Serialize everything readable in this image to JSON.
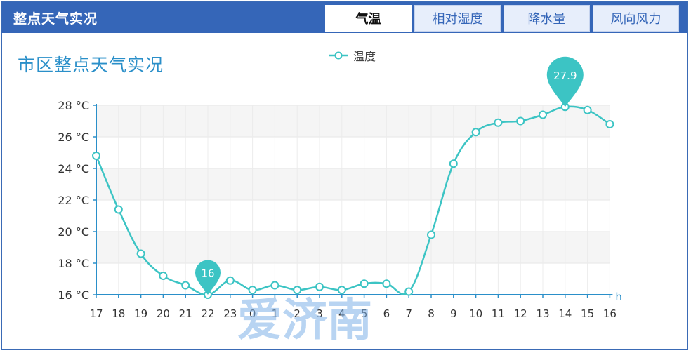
{
  "header": {
    "title": "整点天气实况",
    "tabs": [
      {
        "label": "气温",
        "active": true
      },
      {
        "label": "相对湿度",
        "active": false
      },
      {
        "label": "降水量",
        "active": false
      },
      {
        "label": "风向风力",
        "active": false
      }
    ]
  },
  "watermark": "爱济南",
  "colors": {
    "header": "#3566b8",
    "series": "#3cc4c4",
    "title": "#2a8fc9",
    "axis": "#2a8fc9"
  },
  "chart_data": {
    "type": "line",
    "title": "市区整点天气实况",
    "legend": {
      "entries": [
        "温度"
      ],
      "placement": "top-center"
    },
    "x_unit": "h",
    "y_unit_suffix": " °C",
    "categories": [
      "17",
      "18",
      "19",
      "20",
      "21",
      "22",
      "23",
      "0",
      "1",
      "2",
      "3",
      "4",
      "5",
      "6",
      "7",
      "8",
      "9",
      "10",
      "11",
      "12",
      "13",
      "14",
      "15",
      "16"
    ],
    "series": [
      {
        "name": "温度",
        "values": [
          24.8,
          21.4,
          18.6,
          17.2,
          16.6,
          16.0,
          16.9,
          16.3,
          16.6,
          16.3,
          16.5,
          16.3,
          16.7,
          16.7,
          16.2,
          19.8,
          24.3,
          26.3,
          26.9,
          27.0,
          27.4,
          27.9,
          27.7,
          26.8
        ]
      }
    ],
    "ylim": [
      16,
      28
    ],
    "yticks": [
      16,
      18,
      20,
      22,
      24,
      26,
      28
    ],
    "grid": true,
    "annotations": [
      {
        "type": "min",
        "category": "22",
        "value": 16,
        "label": "16"
      },
      {
        "type": "max",
        "category": "14",
        "value": 27.9,
        "label": "27.9"
      }
    ]
  }
}
